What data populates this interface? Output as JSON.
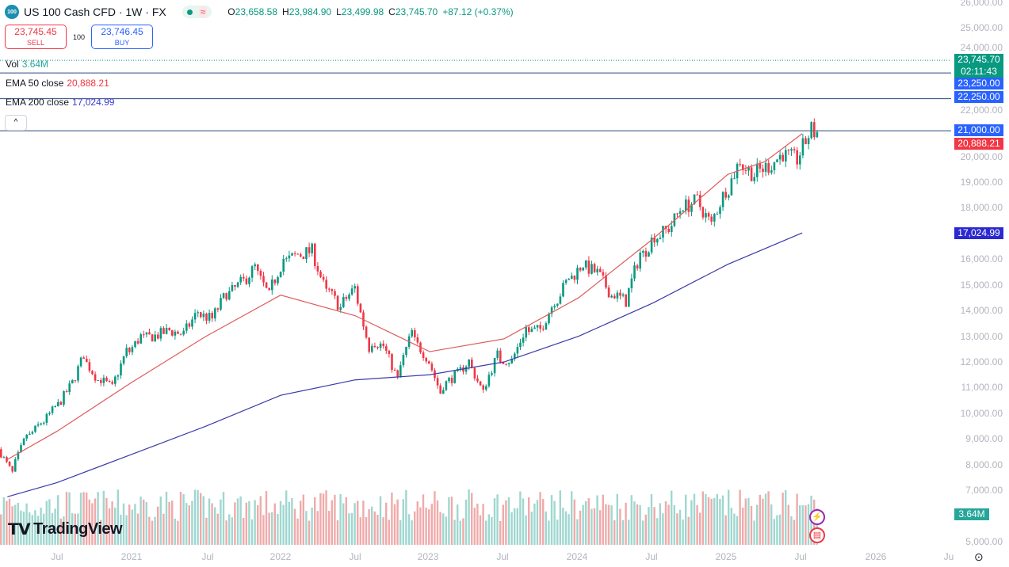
{
  "header": {
    "logo_text": "100",
    "title": "US 100 Cash CFD · 1W · FX",
    "status_icon": "market-open-dot",
    "data_icon": "approx-icon",
    "ohlc": {
      "o_label": "O",
      "o": "23,658.58",
      "h_label": "H",
      "h": "23,984.90",
      "l_label": "L",
      "l": "23,499.98",
      "c_label": "C",
      "c": "23,745.70",
      "change": "+87.12 (+0.37%)"
    }
  },
  "trade": {
    "sell_price": "23,745.45",
    "sell_label": "SELL",
    "qty": "100",
    "buy_price": "23,746.45",
    "buy_label": "BUY"
  },
  "indicators": {
    "vol_label": "Vol",
    "vol_value": "3.64M",
    "ema50_label": "EMA 50 close",
    "ema50_value": "20,888.21",
    "ema200_label": "EMA 200 close",
    "ema200_value": "17,024.99",
    "collapse_icon": "^"
  },
  "price_axis": [
    "26,000.00",
    "25,000.00",
    "24,000.00",
    "22,000.00",
    "20,000.00",
    "19,000.00",
    "18,000.00",
    "16,000.00",
    "15,000.00",
    "14,000.00",
    "13,000.00",
    "12,000.00",
    "11,000.00",
    "10,000.00",
    "9,000.00",
    "8,000.00",
    "7,000.00",
    "5,000.00"
  ],
  "price_labels": {
    "last": "23,745.70",
    "countdown": "02:11:43",
    "line1": "23,250.00",
    "line2": "22,250.00",
    "line3": "21,000.00",
    "ema50": "20,888.21",
    "ema200": "17,024.99",
    "vol": "3.64M"
  },
  "time_axis": [
    "Jul",
    "2021",
    "Jul",
    "2022",
    "Jul",
    "2023",
    "Jul",
    "2024",
    "Jul",
    "2025",
    "Jul",
    "2026",
    "Ju"
  ],
  "brand": "TradingView",
  "colors": {
    "up": "#089981",
    "down": "#f23645",
    "ema50": "#e05a5a",
    "ema200": "#3a3aa8",
    "hline": "#2a4a7f",
    "blue": "#2962ff"
  },
  "chart_data": {
    "type": "candlestick",
    "timeframe": "1W",
    "ylim": [
      5000,
      26000
    ],
    "start": "2020-03",
    "monthly_close": [
      7800,
      9000,
      9550,
      10150,
      10900,
      12100,
      11400,
      11050,
      12250,
      12900,
      13000,
      13200,
      13100,
      13850,
      13700,
      14550,
      15000,
      15600,
      14700,
      15850,
      16150,
      16300,
      14900,
      14200,
      14800,
      12850,
      12650,
      11500,
      12950,
      12300,
      11000,
      11400,
      11950,
      10950,
      12100,
      12050,
      13150,
      13250,
      14250,
      15150,
      15750,
      15500,
      14700,
      14400,
      16000,
      16800,
      17150,
      18000,
      18250,
      17450,
      18550,
      19700,
      19350,
      19600,
      20050,
      19900,
      20900,
      21000,
      21450,
      20900,
      19300,
      19550,
      21300,
      22700,
      23745.7
    ],
    "ema50_monthly": {
      "2020-03": 8200,
      "2020-07": 9300,
      "2021-01": 11200,
      "2021-07": 13000,
      "2022-01": 14600,
      "2022-07": 13800,
      "2023-01": 12400,
      "2023-07": 12900,
      "2024-01": 14500,
      "2024-07": 16800,
      "2025-01": 19300,
      "2025-04": 19800,
      "2025-07": 20888.21
    },
    "ema200_monthly": {
      "2020-03": 6750,
      "2020-07": 7300,
      "2021-01": 8400,
      "2021-07": 9500,
      "2022-01": 10700,
      "2022-07": 11300,
      "2023-01": 11500,
      "2023-07": 12000,
      "2024-01": 13000,
      "2024-07": 14300,
      "2025-01": 15800,
      "2025-07": 17024.99
    },
    "horizontal_lines": [
      23250,
      22250,
      21000
    ],
    "last_price": 23745.7
  }
}
